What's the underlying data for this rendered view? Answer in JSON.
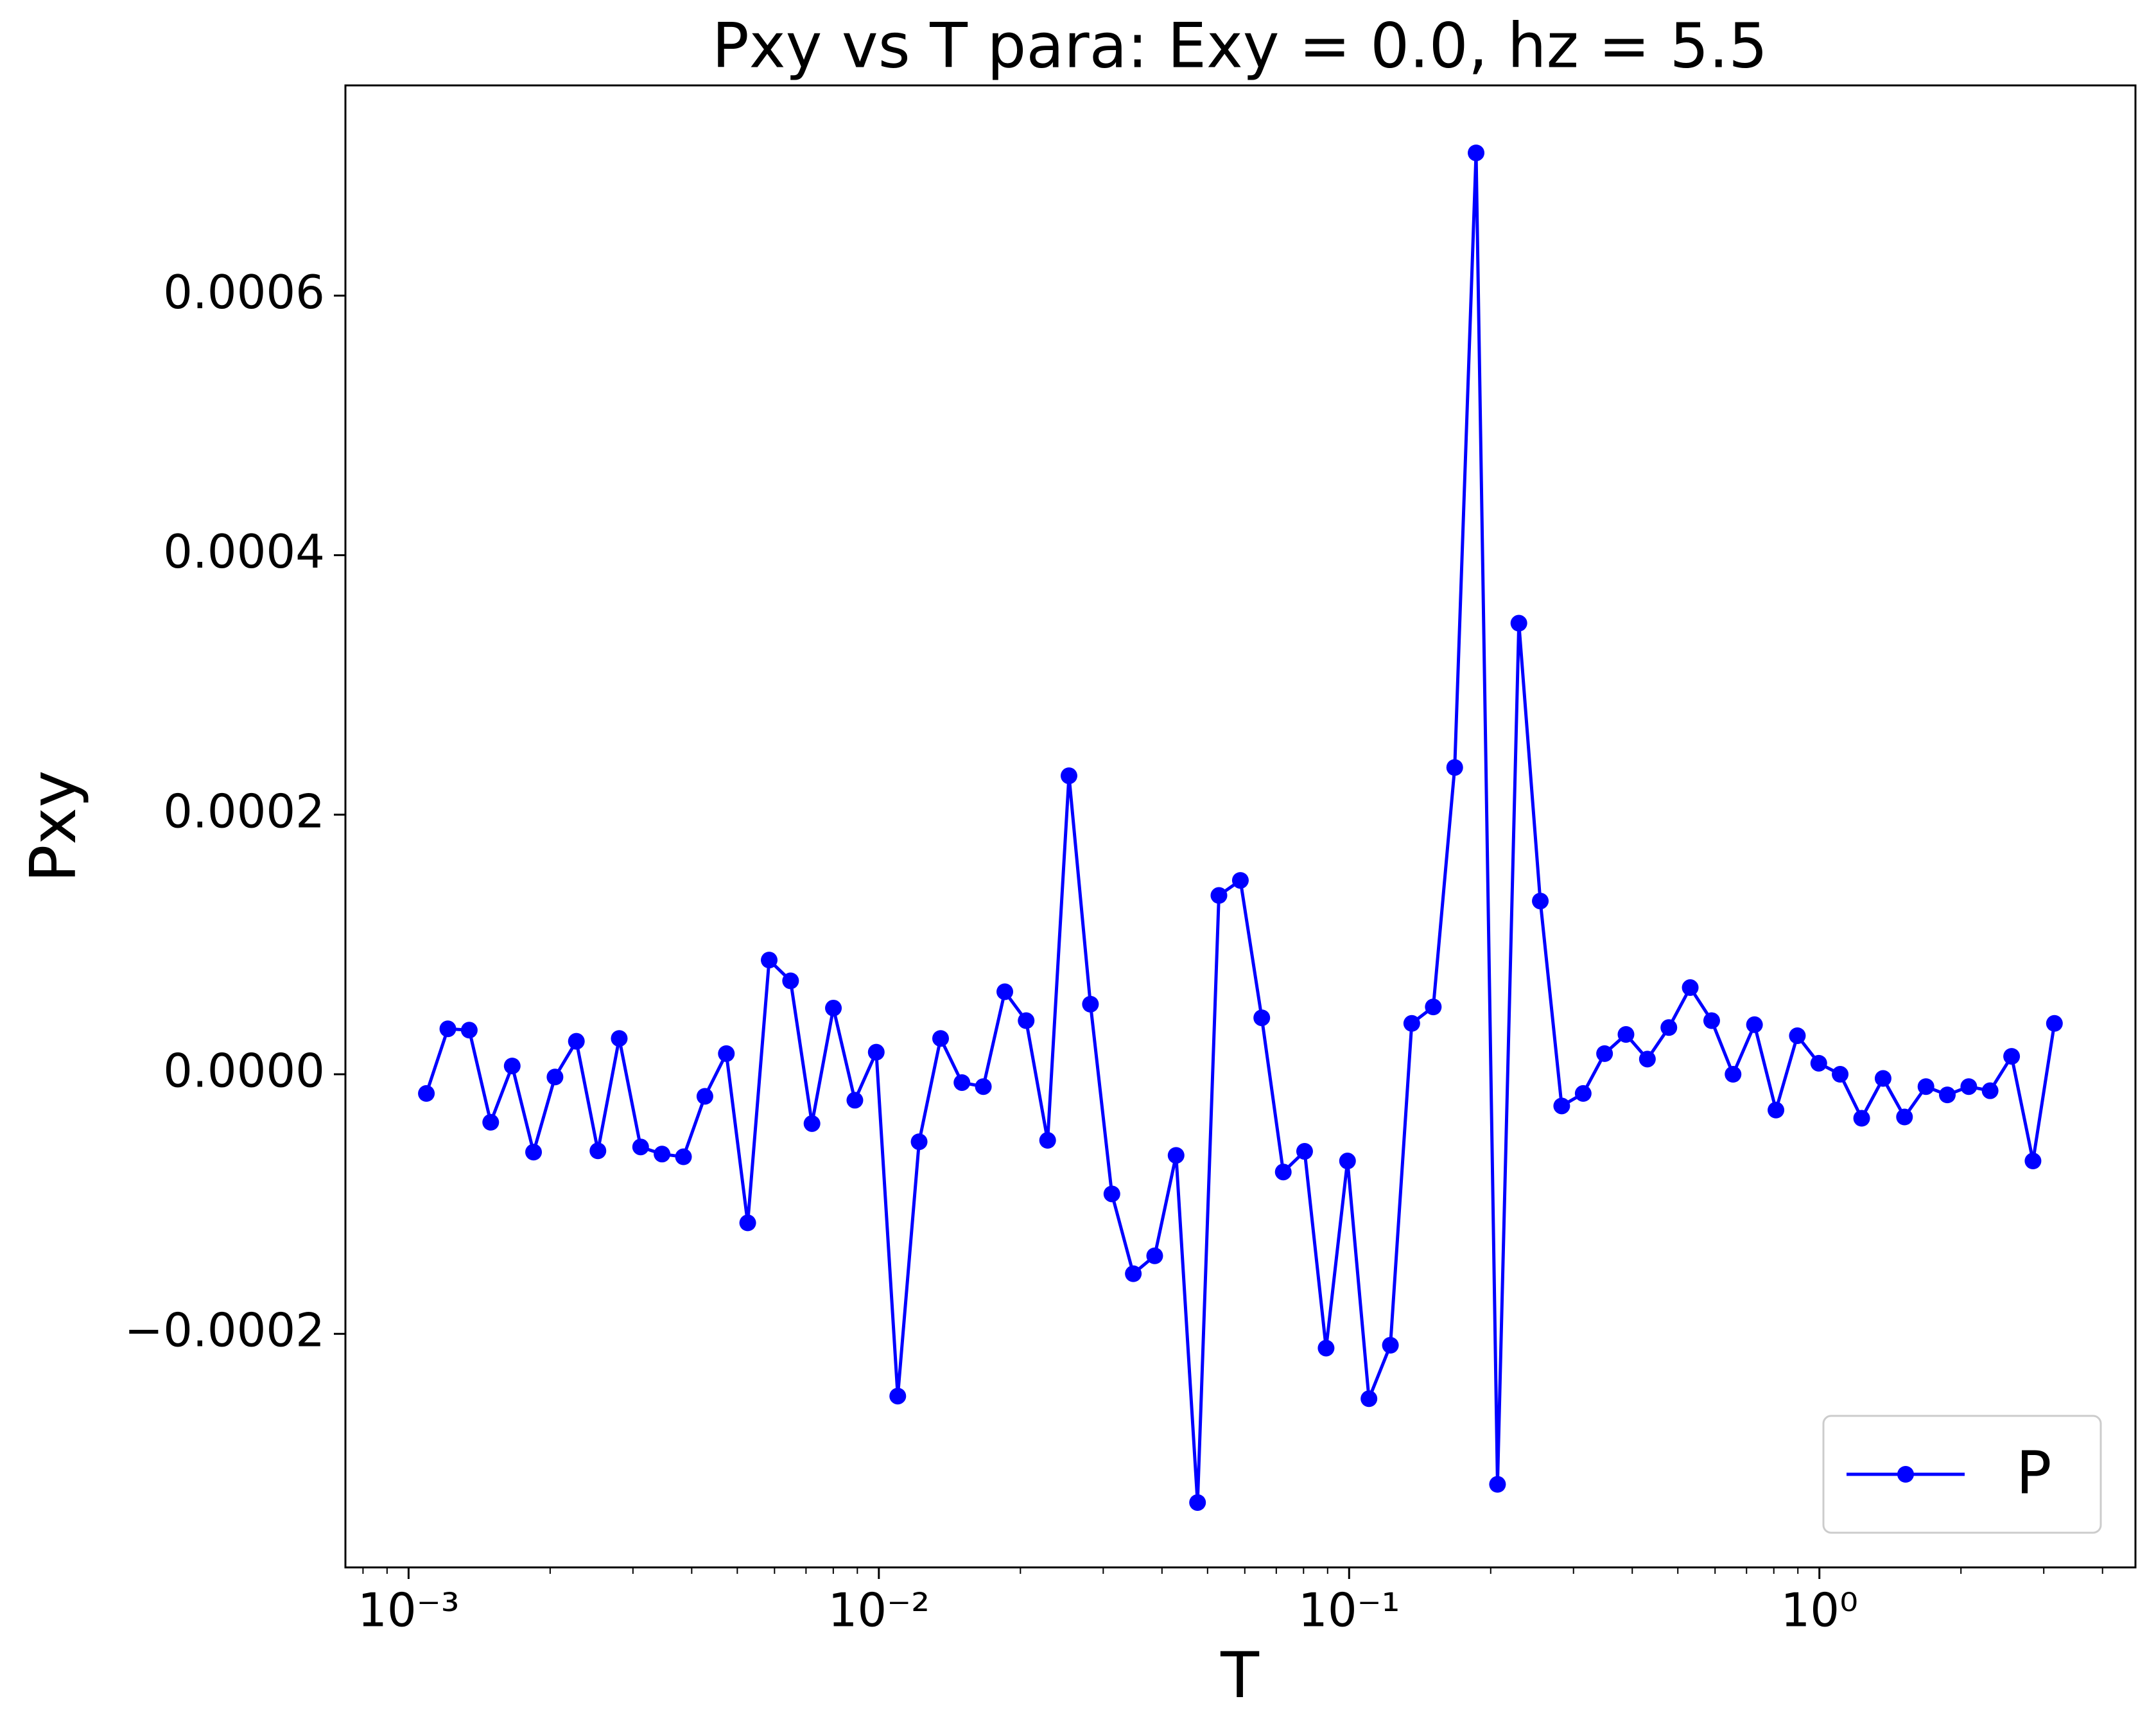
{
  "chart_data": {
    "type": "line",
    "title": "Pxy vs T para: Exy = 0.0, hz = 5.5",
    "x_label": "T",
    "y_label": "Pxy",
    "x_scale": "log",
    "legend_loc": "lower right",
    "grid": false,
    "xlim": [
      0.000734,
      4.7
    ],
    "ylim": [
      -0.00038,
      0.000762
    ],
    "xticks": [
      {
        "value": 0.001,
        "label": "10⁻³"
      },
      {
        "value": 0.01,
        "label": "10⁻²"
      },
      {
        "value": 0.1,
        "label": "10⁻¹"
      },
      {
        "value": 1,
        "label": "10⁰"
      }
    ],
    "yticks": [
      {
        "value": -0.0002,
        "label": "−0.0002"
      },
      {
        "value": 0,
        "label": "0.0000"
      },
      {
        "value": 0.0002,
        "label": "0.0002"
      },
      {
        "value": 0.0004,
        "label": "0.0004"
      },
      {
        "value": 0.0006,
        "label": "0.0006"
      }
    ],
    "x": [
      0.001091,
      0.001212,
      0.001346,
      0.001495,
      0.001661,
      0.001844,
      0.002048,
      0.002274,
      0.002527,
      0.002805,
      0.003115,
      0.003459,
      0.003842,
      0.004267,
      0.004739,
      0.005262,
      0.005845,
      0.006491,
      0.007208,
      0.008005,
      0.008892,
      0.009874,
      0.01097,
      0.01218,
      0.01353,
      0.01502,
      0.01668,
      0.01853,
      0.02057,
      0.02285,
      0.02537,
      0.02818,
      0.0313,
      0.03476,
      0.0386,
      0.04286,
      0.04761,
      0.05286,
      0.05872,
      0.0652,
      0.07244,
      0.08042,
      0.08934,
      0.09922,
      0.1102,
      0.1224,
      0.1359,
      0.151,
      0.1677,
      0.1862,
      0.2068,
      0.2296,
      0.255,
      0.2832,
      0.3146,
      0.3493,
      0.3879,
      0.4308,
      0.4785,
      0.5313,
      0.5902,
      0.6553,
      0.7278,
      0.8084,
      0.8978,
      0.997,
      1.107,
      1.23,
      1.366,
      1.517,
      1.685,
      1.871,
      2.078,
      2.307,
      2.563,
      2.846,
      3.161
    ],
    "series": [
      {
        "name": "P",
        "color": "#0000ff",
        "values": [
          -1.48e-05,
          3.5e-05,
          3.4e-05,
          -3.7e-05,
          6.4e-06,
          -6e-05,
          -2.1e-06,
          2.54e-05,
          -5.9e-05,
          2.76e-05,
          -5.6e-05,
          -6.15e-05,
          -6.36e-05,
          -1.7e-05,
          1.59e-05,
          -0.0001145,
          8.8e-05,
          7.2e-05,
          -3.8e-05,
          5.1e-05,
          -2e-05,
          1.7e-05,
          -0.000248,
          -5.2e-05,
          2.76e-05,
          -6.4e-06,
          -9.5e-06,
          6.36e-05,
          4.13e-05,
          -5.09e-05,
          0.00023,
          5.4e-05,
          -9.22e-05,
          -0.0001537,
          -0.0001399,
          -6.25e-05,
          -0.00033,
          0.0001378,
          0.0001494,
          4.35e-05,
          -7.53e-05,
          -5.94e-05,
          -0.000211,
          -6.68e-05,
          -0.00025,
          -0.0002088,
          3.92e-05,
          5.19e-05,
          0.0002364,
          0.00071,
          -0.000316,
          0.0003476,
          0.0001335,
          -2.44e-05,
          -1.48e-05,
          1.59e-05,
          3.07e-05,
          1.17e-05,
          3.6e-05,
          6.68e-05,
          4.13e-05,
          0,
          3.82e-05,
          -2.76e-05,
          2.97e-05,
          8.5e-06,
          0,
          -3.39e-05,
          -3.2e-06,
          -3.29e-05,
          -9.5e-06,
          -1.59e-05,
          -9.5e-06,
          -1.27e-05,
          1.38e-05,
          -6.68e-05,
          3.92e-05
        ]
      }
    ]
  }
}
